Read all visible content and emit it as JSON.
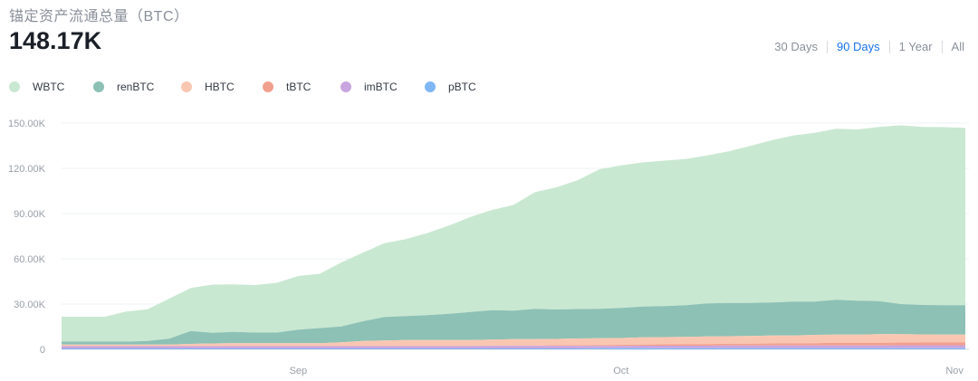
{
  "header": {
    "title": "锚定资产流通总量（BTC）",
    "current_value": "148.17K"
  },
  "ranges": {
    "options": [
      "30 Days",
      "90 Days",
      "1 Year",
      "All"
    ],
    "selected": "90 Days",
    "accent_color": "#1a73e8"
  },
  "chart_data": {
    "type": "area",
    "stacked": true,
    "title": "锚定资产流通总量（BTC）",
    "x": [
      "2020-08-10",
      "2020-08-12",
      "2020-08-14",
      "2020-08-16",
      "2020-08-18",
      "2020-08-20",
      "2020-08-22",
      "2020-08-24",
      "2020-08-26",
      "2020-08-28",
      "2020-08-30",
      "2020-09-01",
      "2020-09-03",
      "2020-09-05",
      "2020-09-07",
      "2020-09-09",
      "2020-09-11",
      "2020-09-13",
      "2020-09-15",
      "2020-09-17",
      "2020-09-19",
      "2020-09-21",
      "2020-09-23",
      "2020-09-25",
      "2020-09-27",
      "2020-09-29",
      "2020-10-01",
      "2020-10-03",
      "2020-10-05",
      "2020-10-07",
      "2020-10-09",
      "2020-10-11",
      "2020-10-13",
      "2020-10-15",
      "2020-10-17",
      "2020-10-19",
      "2020-10-21",
      "2020-10-23",
      "2020-10-25",
      "2020-10-27",
      "2020-10-29",
      "2020-10-31",
      "2020-11-02"
    ],
    "x_ticks": [
      "Sep",
      "Oct",
      "Nov"
    ],
    "x_tick_dates": [
      "2020-09-01",
      "2020-10-01",
      "2020-11-01"
    ],
    "y_ticks": [
      "0",
      "30.00K",
      "60.00K",
      "90.00K",
      "120.00K",
      "150.00K"
    ],
    "y_tick_values": [
      0,
      30000,
      60000,
      90000,
      120000,
      150000
    ],
    "ylim": [
      0,
      150000
    ],
    "grid": true,
    "legend_position": "top-left",
    "series": [
      {
        "name": "pBTC",
        "color": "#7fb7f5",
        "values": [
          600,
          600,
          600,
          600,
          600,
          600,
          600,
          600,
          600,
          600,
          600,
          600,
          600,
          600,
          600,
          600,
          600,
          600,
          600,
          600,
          600,
          600,
          600,
          600,
          600,
          700,
          700,
          700,
          700,
          700,
          700,
          700,
          700,
          700,
          700,
          700,
          700,
          700,
          700,
          700,
          700,
          700,
          700
        ]
      },
      {
        "name": "imBTC",
        "color": "#c9a5df",
        "values": [
          1500,
          1500,
          1500,
          1500,
          1500,
          1500,
          1500,
          1500,
          1500,
          1500,
          1500,
          1500,
          1500,
          1500,
          1500,
          1500,
          1500,
          1500,
          1500,
          1500,
          1600,
          1600,
          1600,
          1600,
          1600,
          1600,
          1600,
          1700,
          1700,
          1700,
          1700,
          1800,
          1800,
          1800,
          1800,
          1800,
          1900,
          1900,
          1900,
          2000,
          2000,
          2000,
          2000
        ]
      },
      {
        "name": "tBTC",
        "color": "#f2a08e",
        "values": [
          0,
          0,
          0,
          0,
          0,
          0,
          0,
          0,
          0,
          0,
          0,
          0,
          0,
          0,
          0,
          0,
          0,
          0,
          0,
          100,
          200,
          300,
          400,
          500,
          500,
          600,
          700,
          800,
          900,
          1000,
          1100,
          1200,
          1300,
          1400,
          1500,
          1600,
          1700,
          1700,
          1800,
          1800,
          1900,
          1900,
          1900
        ]
      },
      {
        "name": "HBTC",
        "color": "#f9c7b1",
        "values": [
          1000,
          1000,
          1000,
          1000,
          1000,
          1000,
          1500,
          1800,
          2000,
          2000,
          2000,
          2000,
          2000,
          2500,
          3500,
          3800,
          4000,
          4000,
          4000,
          4000,
          4000,
          4200,
          4200,
          4200,
          4500,
          4500,
          4500,
          4700,
          4800,
          4800,
          5000,
          5000,
          5000,
          5200,
          5200,
          5500,
          5500,
          5500,
          5600,
          5500,
          5300,
          5200,
          5200
        ]
      },
      {
        "name": "renBTC",
        "color": "#8dc1b5",
        "values": [
          2000,
          2000,
          2000,
          2000,
          2500,
          4000,
          8500,
          7000,
          7500,
          7000,
          7000,
          9000,
          10000,
          10500,
          13000,
          15500,
          16000,
          16500,
          17500,
          18500,
          19500,
          19000,
          20000,
          19500,
          19500,
          19500,
          20000,
          20500,
          20500,
          21000,
          22000,
          22000,
          22000,
          22000,
          22500,
          22000,
          23000,
          22500,
          22000,
          20000,
          19500,
          19500,
          19500
        ]
      },
      {
        "name": "WBTC",
        "color": "#c9e8d1",
        "values": [
          16500,
          16500,
          16500,
          20000,
          21000,
          26500,
          28500,
          32000,
          31500,
          31500,
          33000,
          35500,
          36000,
          42500,
          45500,
          49000,
          51000,
          54500,
          58500,
          63000,
          66500,
          70000,
          77500,
          81000,
          85500,
          92500,
          94500,
          95500,
          96500,
          97000,
          98000,
          100500,
          104000,
          107500,
          110000,
          112000,
          113500,
          113500,
          115500,
          118500,
          118000,
          118000,
          117500
        ]
      }
    ]
  }
}
